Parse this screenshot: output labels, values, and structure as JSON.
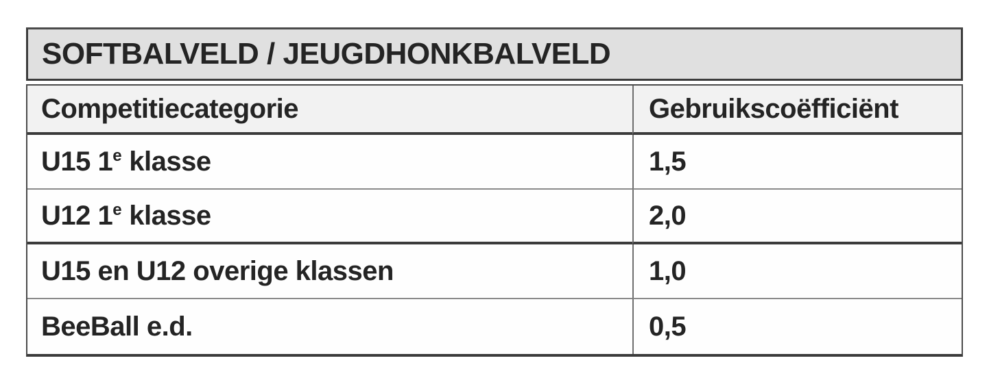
{
  "table": {
    "title": "SOFTBALVELD / JEUGDHONKBALVELD",
    "columns": [
      "Competitiecategorie",
      "Gebruikscoëfficiënt"
    ],
    "rows": [
      {
        "category": {
          "text": "U15 1",
          "sup": "e",
          "rest": " klasse"
        },
        "value": "1,5"
      },
      {
        "category": {
          "text": "U12 1",
          "sup": "e",
          "rest": " klasse"
        },
        "value": "2,0"
      },
      {
        "category": {
          "text": "U15 en U12 overige klassen",
          "sup": "",
          "rest": ""
        },
        "value": "1,0"
      },
      {
        "category": {
          "text": "BeeBall e.d.",
          "sup": "",
          "rest": ""
        },
        "value": "0,5"
      }
    ],
    "colors": {
      "title_bg": "#e0e0e0",
      "header_bg": "#f2f2f2",
      "row_bg": "#fefefe",
      "border_dark": "#3b3b3b",
      "border_thin": "#8a8a8a",
      "text": "#242424"
    }
  }
}
